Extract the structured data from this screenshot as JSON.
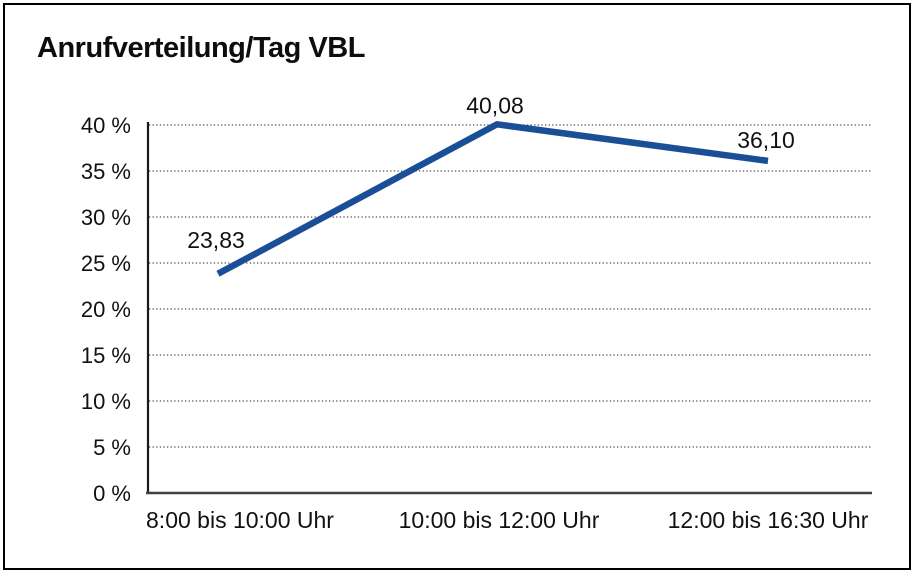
{
  "chart_data": {
    "type": "line",
    "title": "Anrufverteilung/Tag VBL",
    "categories": [
      "8:00 bis 10:00 Uhr",
      "10:00 bis 12:00 Uhr",
      "12:00 bis 16:30 Uhr"
    ],
    "values": [
      23.83,
      40.08,
      36.1
    ],
    "value_labels": [
      "23,83",
      "40,08",
      "36,10"
    ],
    "y_ticks": [
      0,
      5,
      10,
      15,
      20,
      25,
      30,
      35,
      40
    ],
    "y_tick_labels": [
      "0 %",
      "5 %",
      "10 %",
      "15 %",
      "20 %",
      "25 %",
      "30 %",
      "35 %",
      "40 %"
    ],
    "ylim": [
      0,
      40
    ],
    "xlabel": "",
    "ylabel": "",
    "legend": "none",
    "grid": "horizontal dotted gridlines at each 5% tick",
    "line_color": "#1a4f97",
    "axis_color": "#1a1a1a",
    "x_axis_color": "#404040",
    "grid_color": "#4d4d4d",
    "text_color": "#111111"
  }
}
